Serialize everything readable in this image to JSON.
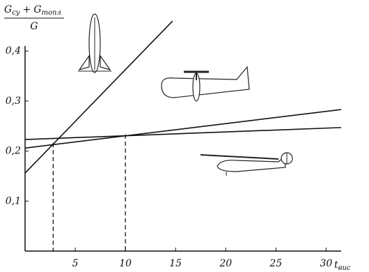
{
  "chart_data": {
    "type": "line",
    "ylabel": {
      "numerator": [
        {
          "text": "G",
          "sub": "су"
        },
        "+",
        {
          "text": "G",
          "sub": "топл"
        }
      ],
      "denominator": "G"
    },
    "xlabel": {
      "text": "t",
      "sub": "вис"
    },
    "series": [
      {
        "color": "#111",
        "x": [
          0,
          14.7
        ],
        "values": [
          0.156,
          0.46
        ]
      },
      {
        "color": "#111",
        "x": [
          0,
          31.5
        ],
        "values": [
          0.206,
          0.283
        ]
      },
      {
        "color": "#111",
        "x": [
          0,
          31.5
        ],
        "values": [
          0.223,
          0.247
        ]
      }
    ],
    "vlines": [
      {
        "x": 2.8,
        "y": 0.216
      },
      {
        "x": 10,
        "y": 0.233
      }
    ],
    "xlim": [
      0,
      31.5
    ],
    "ylim": [
      0,
      0.41
    ],
    "xticks": [
      5,
      10,
      15,
      20,
      25,
      30
    ],
    "yticks": [
      {
        "value": 0.1,
        "label": "0,1"
      },
      {
        "value": 0.2,
        "label": "0,2"
      },
      {
        "value": 0.3,
        "label": "0,3"
      },
      {
        "value": 0.4,
        "label": "0,4"
      }
    ]
  }
}
